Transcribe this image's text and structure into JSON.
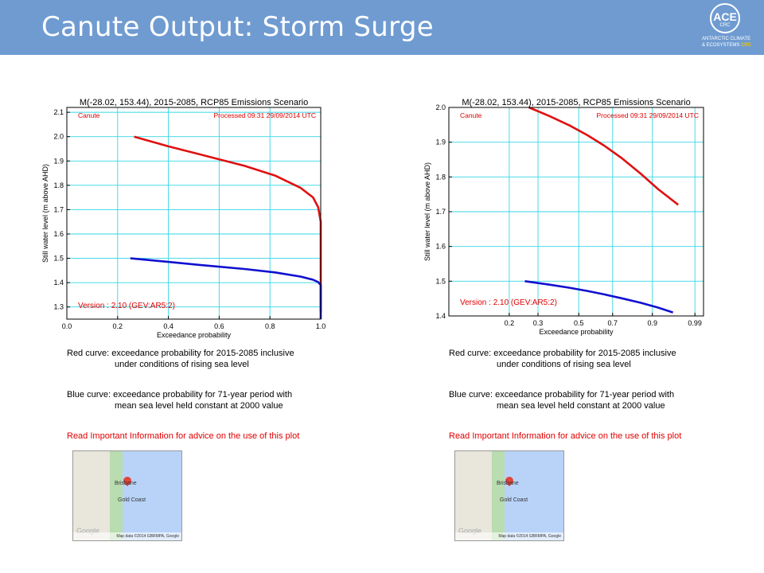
{
  "header": {
    "title": "Canute Output: Storm Surge",
    "logo_main": "ACE",
    "logo_sub": "CRC",
    "logo_line1": "ANTARCTIC CLIMATE",
    "logo_line2": "& ECOSYSTEMS",
    "logo_line2_crc": "CRC",
    "colors": {
      "header_bg": "#6f9bd1",
      "title": "#ffffff",
      "crc_accent": "#f2c200"
    }
  },
  "chart_data": [
    {
      "type": "line",
      "title": "M(-28.02, 153.44), 2015-2085, RCP85 Emissions Scenario",
      "label_left": "Canute",
      "label_right": "Processed 09:31 29/09/2014 UTC",
      "version": "Version : 2.10 (GEV:AR5:2)",
      "xlabel": "Exceedance probability",
      "ylabel": "Still water level (m above AHD)",
      "xscale": "linear",
      "xlim": [
        0.0,
        1.0
      ],
      "ylim": [
        1.25,
        2.12
      ],
      "xticks": [
        "0.0",
        "0.2",
        "0.4",
        "0.6",
        "0.8",
        "1.0"
      ],
      "xtick_values": [
        0.0,
        0.2,
        0.4,
        0.6,
        0.8,
        1.0
      ],
      "yticks": [
        "1.3",
        "1.4",
        "1.5",
        "1.6",
        "1.7",
        "1.8",
        "1.9",
        "2.0",
        "2.1"
      ],
      "ytick_values": [
        1.3,
        1.4,
        1.5,
        1.6,
        1.7,
        1.8,
        1.9,
        2.0,
        2.1
      ],
      "grid": true,
      "series": [
        {
          "color": "#e01010",
          "x": [
            0.265,
            0.4,
            0.55,
            0.7,
            0.82,
            0.92,
            0.97,
            0.99,
            1.0,
            1.0
          ],
          "y": [
            2.0,
            1.96,
            1.92,
            1.88,
            1.84,
            1.79,
            1.75,
            1.71,
            1.65,
            1.28
          ]
        },
        {
          "color": "#1010d0",
          "x": [
            0.25,
            0.4,
            0.55,
            0.7,
            0.82,
            0.92,
            0.97,
            0.99,
            1.0,
            1.0
          ],
          "y": [
            1.5,
            1.485,
            1.47,
            1.456,
            1.442,
            1.425,
            1.412,
            1.402,
            1.39,
            1.25
          ]
        }
      ]
    },
    {
      "type": "line",
      "title": "M(-28.02, 153.44), 2015-2085, RCP85 Emissions Scenario",
      "label_left": "Canute",
      "label_right": "Processed 09:31 29/09/2014 UTC",
      "version": "Version : 2.10 (GEV:AR5:2)",
      "xlabel": "Exceedance probability",
      "ylabel": "Still water level (m above AHD)",
      "xscale": "log-complement (-log(-log(1-p)))",
      "xlim": [
        0.08,
        0.995
      ],
      "ylim": [
        1.4,
        2.0
      ],
      "xticks": [
        "0.2",
        "0.3",
        "0.5",
        "0.7",
        "0.9",
        "0.99"
      ],
      "xtick_values": [
        0.2,
        0.3,
        0.5,
        0.7,
        0.9,
        0.99
      ],
      "yticks": [
        "1.4",
        "1.5",
        "1.6",
        "1.7",
        "1.8",
        "1.9",
        "2.0"
      ],
      "ytick_values": [
        1.4,
        1.5,
        1.6,
        1.7,
        1.8,
        1.9,
        2.0
      ],
      "grid": true,
      "series": [
        {
          "color": "#e01010",
          "x": [
            0.265,
            0.35,
            0.45,
            0.55,
            0.65,
            0.75,
            0.85,
            0.92,
            0.97
          ],
          "y": [
            2.0,
            1.975,
            1.948,
            1.92,
            1.89,
            1.855,
            1.81,
            1.765,
            1.72
          ]
        },
        {
          "color": "#1010d0",
          "x": [
            0.25,
            0.35,
            0.45,
            0.55,
            0.65,
            0.75,
            0.85,
            0.92,
            0.96
          ],
          "y": [
            1.5,
            1.49,
            1.481,
            1.472,
            1.462,
            1.451,
            1.438,
            1.424,
            1.41
          ]
        }
      ]
    }
  ],
  "captions": {
    "red_line1": "Red curve: exceedance probability for 2015-2085 inclusive",
    "red_line2": "under conditions of rising sea level",
    "blue_line1": "Blue curve: exceedance probability for 71-year period with",
    "blue_line2": "mean sea level held constant at 2000 value",
    "advice": "Read Important Information for advice on the use of this plot",
    "advice_color": "#e00000"
  },
  "map": {
    "label_city1": "Brisbane",
    "label_city2": "Gold Coast",
    "brand": "Google",
    "footer": "Map data ©2014 GBRMPA, Google"
  }
}
